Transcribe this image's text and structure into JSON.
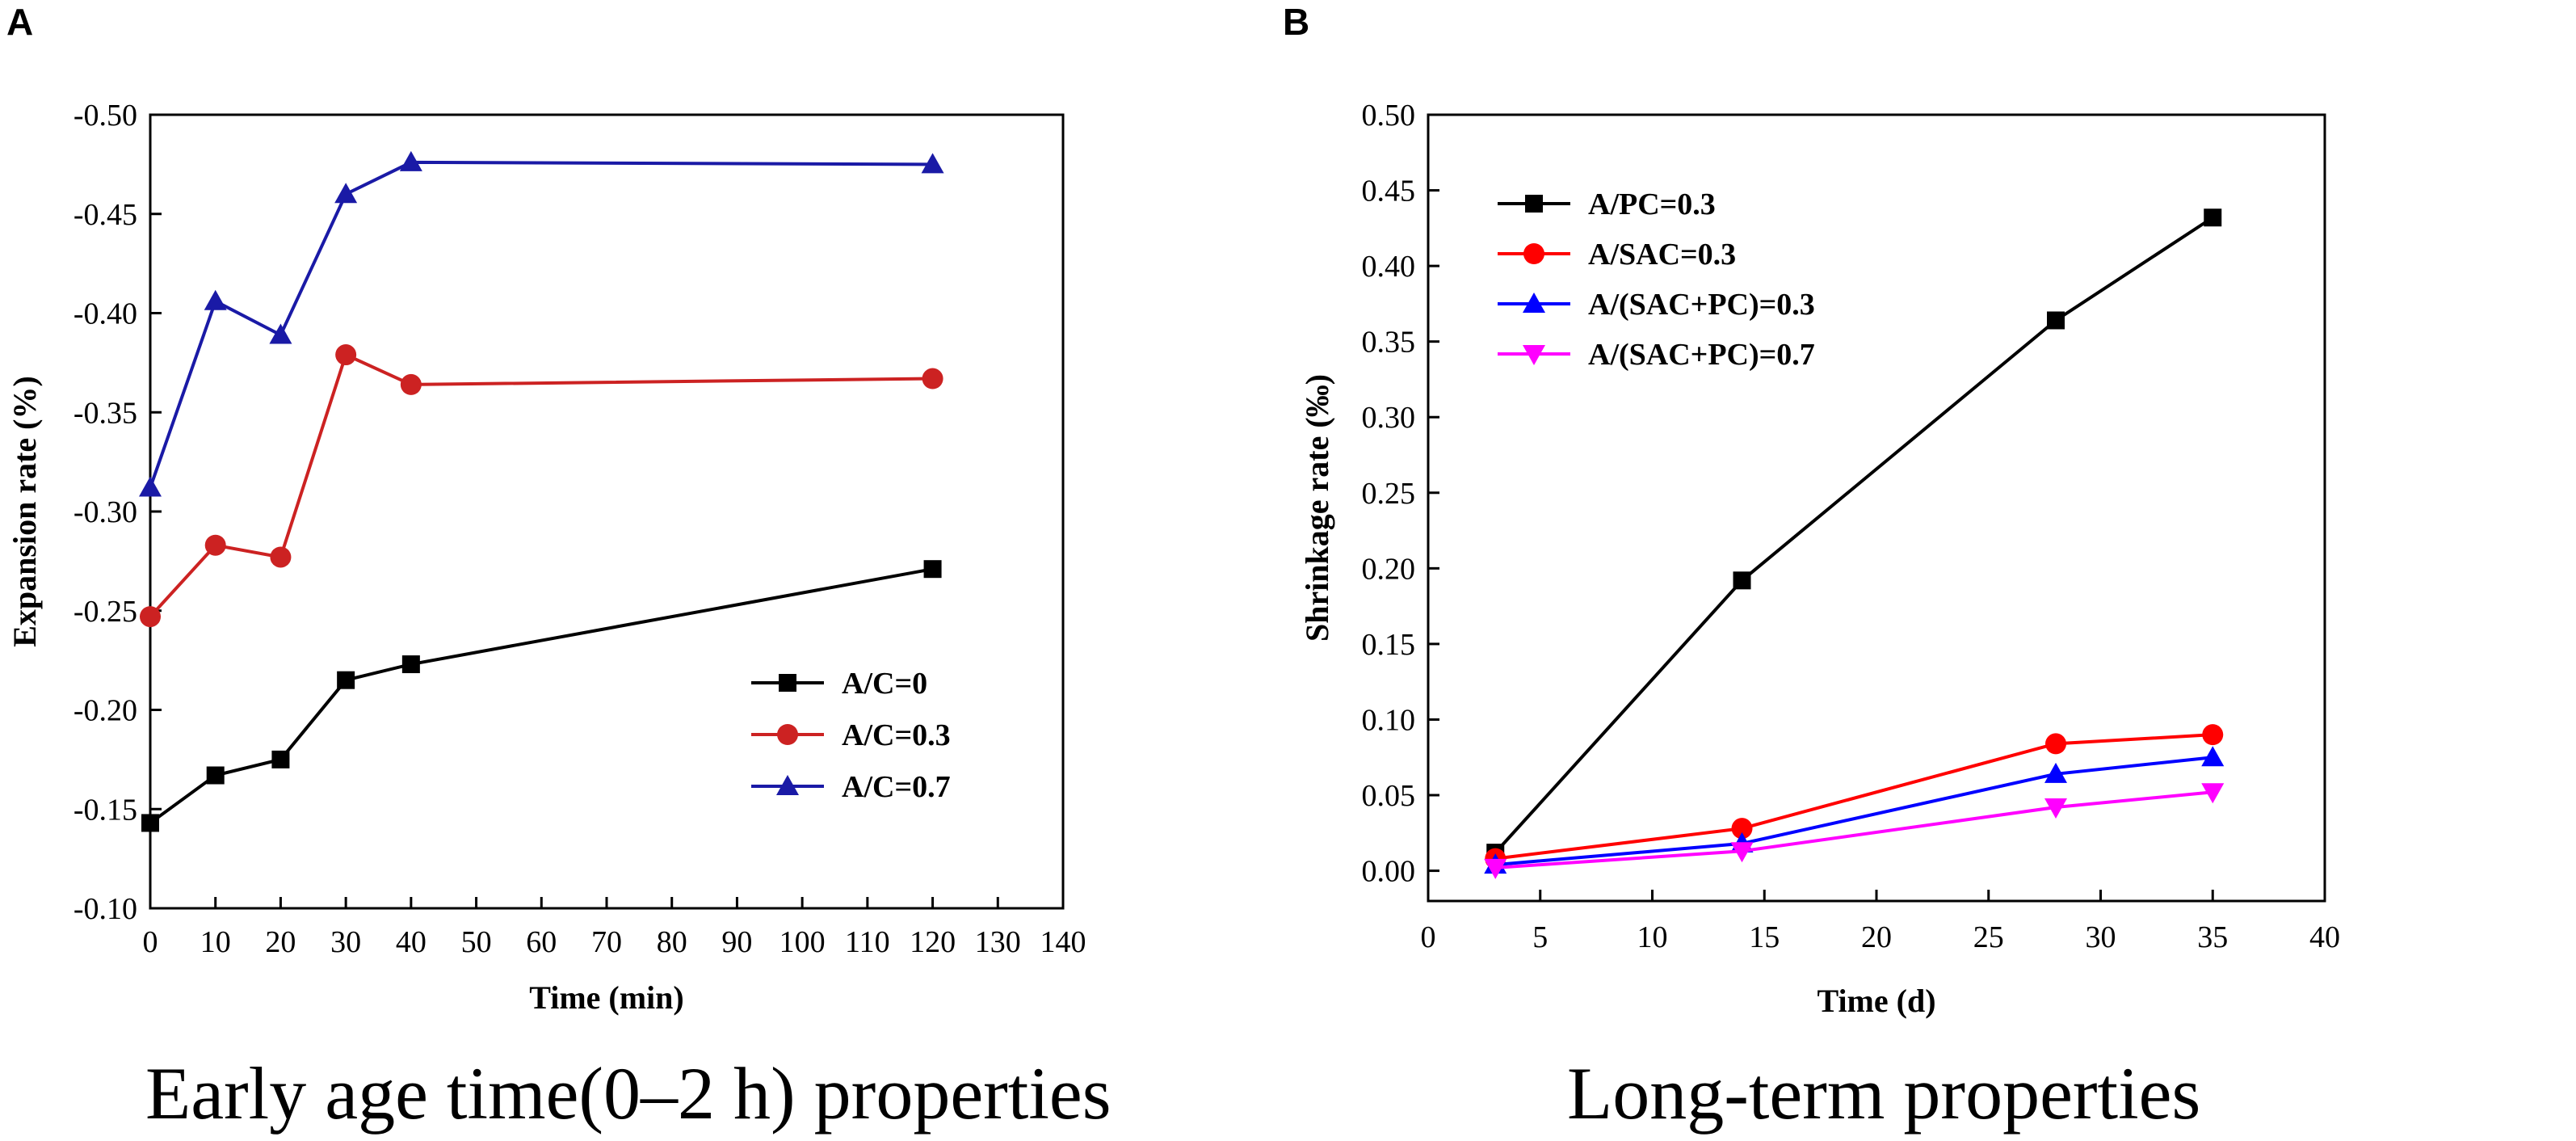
{
  "panels": {
    "a_letter": "A",
    "b_letter": "B"
  },
  "captions": {
    "a": "Early age time(0–2 h) properties",
    "b": "Long-term properties"
  },
  "chart_data": [
    {
      "type": "line",
      "xlabel": "Time  (min)",
      "ylabel": "Expansion rate (%)",
      "xlim": [
        0,
        140
      ],
      "ylim": [
        -0.1,
        -0.5
      ],
      "xticks": [
        0,
        10,
        20,
        30,
        40,
        50,
        60,
        70,
        80,
        90,
        100,
        110,
        120,
        130,
        140
      ],
      "xtick_labels": [
        "0",
        "10",
        "20",
        "30",
        "40",
        "50",
        "60",
        "70",
        "80",
        "90",
        "100",
        "110",
        "120",
        "130",
        "140"
      ],
      "yticks": [
        -0.1,
        -0.15,
        -0.2,
        -0.25,
        -0.3,
        -0.35,
        -0.4,
        -0.45,
        -0.5
      ],
      "ytick_labels": [
        "-0.10",
        "-0.15",
        "-0.20",
        "-0.25",
        "-0.30",
        "-0.35",
        "-0.40",
        "-0.45",
        "-0.50"
      ],
      "legend_position": "bottom-right",
      "series": [
        {
          "name": "A/C=0",
          "color": "#000000",
          "marker": "square",
          "x": [
            0,
            10,
            20,
            30,
            40,
            120
          ],
          "values": [
            -0.143,
            -0.167,
            -0.175,
            -0.215,
            -0.223,
            -0.271
          ]
        },
        {
          "name": "A/C=0.3",
          "color": "#cc2222",
          "marker": "circle",
          "x": [
            0,
            10,
            20,
            30,
            40,
            120
          ],
          "values": [
            -0.247,
            -0.283,
            -0.277,
            -0.379,
            -0.364,
            -0.367
          ]
        },
        {
          "name": "A/C=0.7",
          "color": "#1a1aa6",
          "marker": "triangle",
          "x": [
            0,
            10,
            20,
            30,
            40,
            120
          ],
          "values": [
            -0.312,
            -0.406,
            -0.389,
            -0.46,
            -0.476,
            -0.475
          ]
        }
      ]
    },
    {
      "type": "line",
      "xlabel": "Time  (d)",
      "ylabel": "Shrinkage rate  (‰)",
      "xlim": [
        0,
        40
      ],
      "ylim": [
        -0.02,
        0.5
      ],
      "xticks": [
        0,
        5,
        10,
        15,
        20,
        25,
        30,
        35,
        40
      ],
      "xtick_labels": [
        "0",
        "5",
        "10",
        "15",
        "20",
        "25",
        "30",
        "35",
        "40"
      ],
      "yticks": [
        0.0,
        0.05,
        0.1,
        0.15,
        0.2,
        0.25,
        0.3,
        0.35,
        0.4,
        0.45,
        0.5
      ],
      "ytick_labels": [
        "0.00",
        "0.05",
        "0.10",
        "0.15",
        "0.20",
        "0.25",
        "0.30",
        "0.35",
        "0.40",
        "0.45",
        "0.50"
      ],
      "legend_position": "top-left",
      "series": [
        {
          "name": "A/PC=0.3",
          "color": "#000000",
          "marker": "square",
          "x": [
            3,
            14,
            28,
            35
          ],
          "values": [
            0.012,
            0.192,
            0.364,
            0.432
          ]
        },
        {
          "name": "A/SAC=0.3",
          "color": "#ff0000",
          "marker": "circle",
          "x": [
            3,
            14,
            28,
            35
          ],
          "values": [
            0.008,
            0.028,
            0.084,
            0.09
          ]
        },
        {
          "name": "A/(SAC+PC)=0.3",
          "color": "#0000ff",
          "marker": "triangle",
          "x": [
            3,
            14,
            28,
            35
          ],
          "values": [
            0.004,
            0.018,
            0.064,
            0.075
          ]
        },
        {
          "name": "A/(SAC+PC)=0.7",
          "color": "#ff00ff",
          "marker": "triangle-down",
          "x": [
            3,
            14,
            28,
            35
          ],
          "values": [
            0.002,
            0.013,
            0.042,
            0.052
          ]
        }
      ]
    }
  ]
}
